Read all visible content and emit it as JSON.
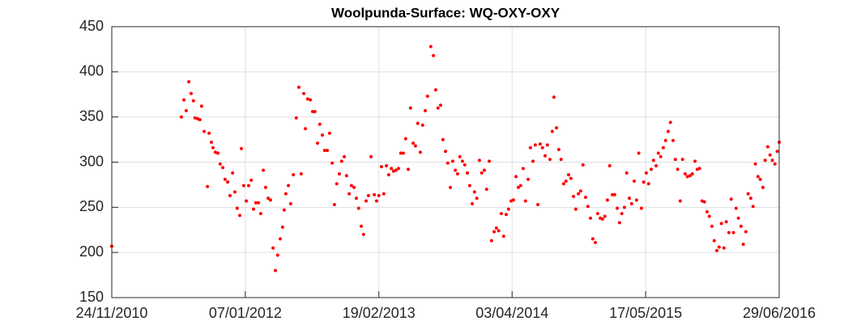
{
  "chart_data": {
    "type": "scatter",
    "title": "Woolpunda-Surface: WQ-OXY-OXY",
    "color": "#ff0000",
    "grid": true,
    "xlim": [
      "2010-11-24",
      "2016-06-29"
    ],
    "xticks": [
      {
        "value": "2010-11-24",
        "label": "24/11/2010"
      },
      {
        "value": "2012-01-07",
        "label": "07/01/2012"
      },
      {
        "value": "2013-02-19",
        "label": "19/02/2013"
      },
      {
        "value": "2014-04-03",
        "label": "03/04/2014"
      },
      {
        "value": "2015-05-17",
        "label": "17/05/2015"
      },
      {
        "value": "2016-06-29",
        "label": "29/06/2016"
      }
    ],
    "ylim": [
      150,
      450
    ],
    "yticks": [
      150,
      200,
      250,
      300,
      350,
      400,
      450
    ],
    "x": [
      "2010-11-24",
      "2011-06-25",
      "2011-07-03",
      "2011-07-10",
      "2011-07-18",
      "2011-07-25",
      "2011-08-01",
      "2011-08-06",
      "2011-08-14",
      "2011-08-21",
      "2011-08-26",
      "2011-09-03",
      "2011-09-13",
      "2011-09-18",
      "2011-09-25",
      "2011-09-30",
      "2011-10-07",
      "2011-10-15",
      "2011-10-22",
      "2011-10-30",
      "2011-11-06",
      "2011-11-14",
      "2011-11-21",
      "2011-11-29",
      "2011-12-06",
      "2011-12-13",
      "2011-12-21",
      "2011-12-26",
      "2012-01-02",
      "2012-01-10",
      "2012-01-17",
      "2012-01-25",
      "2012-02-01",
      "2012-02-08",
      "2012-02-16",
      "2012-02-23",
      "2012-03-02",
      "2012-03-09",
      "2012-03-17",
      "2012-03-24",
      "2012-04-01",
      "2012-04-08",
      "2012-04-15",
      "2012-04-23",
      "2012-04-30",
      "2012-05-05",
      "2012-05-10",
      "2012-05-18",
      "2012-05-25",
      "2012-06-02",
      "2012-06-11",
      "2012-06-19",
      "2012-06-26",
      "2012-07-04",
      "2012-07-09",
      "2012-07-16",
      "2012-07-24",
      "2012-07-31",
      "2012-08-07",
      "2012-08-15",
      "2012-08-22",
      "2012-08-30",
      "2012-09-06",
      "2012-09-14",
      "2012-09-21",
      "2012-09-29",
      "2012-10-06",
      "2012-10-13",
      "2012-10-21",
      "2012-10-28",
      "2012-11-05",
      "2012-11-12",
      "2012-11-20",
      "2012-11-27",
      "2012-12-05",
      "2012-12-12",
      "2012-12-19",
      "2012-12-27",
      "2013-01-03",
      "2013-01-11",
      "2013-01-18",
      "2013-01-26",
      "2013-02-05",
      "2013-02-12",
      "2013-02-19",
      "2013-02-27",
      "2013-03-06",
      "2013-03-14",
      "2013-03-21",
      "2013-03-29",
      "2013-04-05",
      "2013-04-12",
      "2013-04-20",
      "2013-04-27",
      "2013-05-05",
      "2013-05-12",
      "2013-05-20",
      "2013-05-27",
      "2013-06-04",
      "2013-06-11",
      "2013-06-18",
      "2013-06-26",
      "2013-07-03",
      "2013-07-11",
      "2013-07-18",
      "2013-07-28",
      "2013-08-05",
      "2013-08-12",
      "2013-08-19",
      "2013-08-27",
      "2013-09-03",
      "2013-09-11",
      "2013-09-18",
      "2013-09-26",
      "2013-10-03",
      "2013-10-11",
      "2013-10-18",
      "2013-10-25",
      "2013-11-02",
      "2013-11-09",
      "2013-11-17",
      "2013-11-24",
      "2013-12-02",
      "2013-12-09",
      "2013-12-16",
      "2013-12-24",
      "2013-12-31",
      "2014-01-08",
      "2014-01-15",
      "2014-01-23",
      "2014-01-30",
      "2014-02-07",
      "2014-02-14",
      "2014-02-21",
      "2014-03-01",
      "2014-03-08",
      "2014-03-16",
      "2014-03-23",
      "2014-03-31",
      "2014-04-07",
      "2014-04-15",
      "2014-04-22",
      "2014-04-29",
      "2014-05-07",
      "2014-05-14",
      "2014-05-22",
      "2014-05-29",
      "2014-06-06",
      "2014-06-13",
      "2014-06-21",
      "2014-06-28",
      "2014-07-05",
      "2014-07-13",
      "2014-07-20",
      "2014-07-28",
      "2014-08-04",
      "2014-08-09",
      "2014-08-17",
      "2014-08-24",
      "2014-08-31",
      "2014-09-08",
      "2014-09-15",
      "2014-09-23",
      "2014-09-30",
      "2014-10-08",
      "2014-10-15",
      "2014-10-23",
      "2014-10-30",
      "2014-11-06",
      "2014-11-14",
      "2014-11-21",
      "2014-11-29",
      "2014-12-06",
      "2014-12-14",
      "2014-12-21",
      "2014-12-29",
      "2015-01-05",
      "2015-01-12",
      "2015-01-20",
      "2015-01-27",
      "2015-02-04",
      "2015-02-11",
      "2015-02-19",
      "2015-02-26",
      "2015-03-05",
      "2015-03-13",
      "2015-03-20",
      "2015-03-28",
      "2015-04-04",
      "2015-04-12",
      "2015-04-19",
      "2015-04-26",
      "2015-05-04",
      "2015-05-11",
      "2015-05-19",
      "2015-05-26",
      "2015-06-03",
      "2015-06-10",
      "2015-06-18",
      "2015-06-25",
      "2015-07-02",
      "2015-07-10",
      "2015-07-17",
      "2015-07-25",
      "2015-08-01",
      "2015-08-09",
      "2015-08-16",
      "2015-08-23",
      "2015-08-31",
      "2015-09-07",
      "2015-09-15",
      "2015-09-22",
      "2015-09-30",
      "2015-10-07",
      "2015-10-15",
      "2015-10-22",
      "2015-10-29",
      "2015-11-06",
      "2015-11-13",
      "2015-11-21",
      "2015-11-28",
      "2015-12-06",
      "2015-12-13",
      "2015-12-21",
      "2015-12-28",
      "2016-01-04",
      "2016-01-12",
      "2016-01-19",
      "2016-01-27",
      "2016-02-03",
      "2016-02-10",
      "2016-02-18",
      "2016-02-25",
      "2016-03-04",
      "2016-03-11",
      "2016-03-19",
      "2016-03-26",
      "2016-04-03",
      "2016-04-10",
      "2016-04-17",
      "2016-04-25",
      "2016-05-02",
      "2016-05-10",
      "2016-05-17",
      "2016-05-25",
      "2016-06-01",
      "2016-06-08",
      "2016-06-16",
      "2016-06-23",
      "2016-06-29"
    ],
    "values": [
      207,
      350,
      369,
      357,
      389,
      376,
      368,
      349,
      348,
      347,
      362,
      334,
      273,
      332,
      322,
      316,
      311,
      310,
      298,
      294,
      281,
      278,
      263,
      288,
      267,
      249,
      241,
      315,
      274,
      257,
      274,
      280,
      248,
      255,
      255,
      243,
      291,
      272,
      260,
      258,
      205,
      180,
      197,
      215,
      228,
      247,
      265,
      274,
      254,
      286,
      349,
      383,
      287,
      376,
      337,
      370,
      369,
      356,
      356,
      321,
      342,
      330,
      313,
      313,
      332,
      299,
      253,
      276,
      287,
      301,
      306,
      285,
      265,
      274,
      272,
      260,
      249,
      229,
      220,
      257,
      263,
      306,
      264,
      257,
      263,
      295,
      265,
      296,
      286,
      293,
      290,
      291,
      293,
      310,
      310,
      326,
      292,
      360,
      321,
      318,
      343,
      311,
      341,
      357,
      373,
      428,
      418,
      380,
      360,
      363,
      325,
      312,
      299,
      272,
      301,
      291,
      287,
      306,
      301,
      297,
      288,
      274,
      254,
      267,
      260,
      302,
      288,
      291,
      270,
      301,
      213,
      223,
      227,
      224,
      243,
      218,
      242,
      248,
      257,
      258,
      284,
      272,
      274,
      293,
      257,
      281,
      316,
      301,
      319,
      253,
      320,
      316,
      307,
      319,
      303,
      334,
      372,
      338,
      314,
      303,
      276,
      279,
      286,
      282,
      262,
      248,
      265,
      268,
      297,
      261,
      251,
      238,
      215,
      211,
      243,
      238,
      237,
      240,
      258,
      296,
      264,
      264,
      249,
      233,
      243,
      250,
      288,
      260,
      254,
      279,
      258,
      310,
      249,
      278,
      288,
      276,
      292,
      302,
      296,
      310,
      306,
      316,
      324,
      334,
      344,
      324,
      303,
      292,
      257,
      303,
      287,
      284,
      285,
      287,
      301,
      292,
      293,
      257,
      256,
      245,
      240,
      229,
      213,
      202,
      206,
      232,
      205,
      234,
      222,
      259,
      222,
      249,
      238,
      229,
      209,
      223,
      265,
      260,
      251,
      298,
      284,
      281,
      272,
      302,
      317,
      308,
      302,
      298,
      312,
      322
    ]
  }
}
